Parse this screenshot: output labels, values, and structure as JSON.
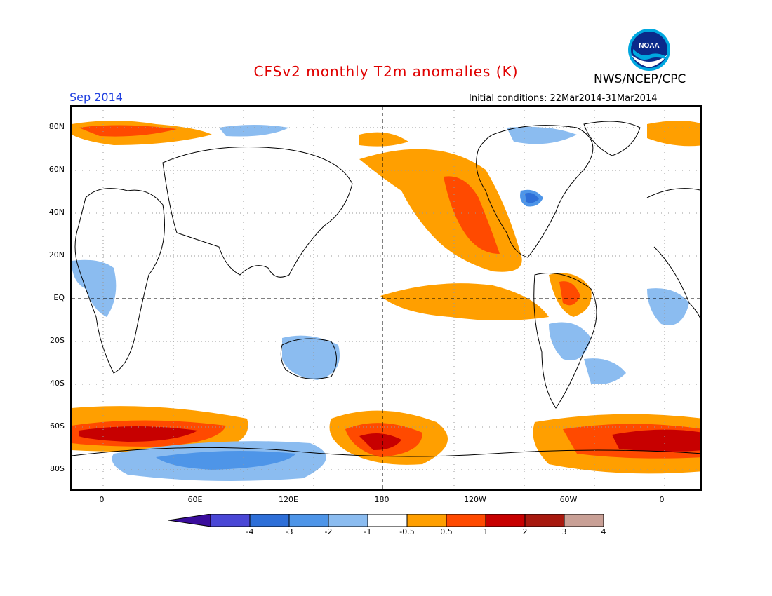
{
  "title": "CFSv2 monthly T2m anomalies (K)",
  "agency": "NWS/NCEP/CPC",
  "valid_month": "Sep 2014",
  "initial_conditions": "Initial conditions: 22Mar2014-31Mar2014",
  "logo_text": "NOAA",
  "lat_labels": [
    "80N",
    "60N",
    "40N",
    "20N",
    "EQ",
    "20S",
    "40S",
    "60S",
    "80S"
  ],
  "lon_labels": [
    "0",
    "60E",
    "120E",
    "180",
    "120W",
    "60W",
    "0"
  ],
  "colorbar": {
    "labels": [
      "-4",
      "-3",
      "-2",
      "-1",
      "-0.5",
      "0.5",
      "1",
      "2",
      "3",
      "4"
    ],
    "colors": [
      "#3a0d9c",
      "#4a47d6",
      "#2e6fd8",
      "#4e95e8",
      "#8bbcf0",
      "#ffffff",
      "#ff9f00",
      "#ff4a00",
      "#c70000",
      "#a8190f",
      "#c9a096",
      "#6b4a3b"
    ]
  }
}
